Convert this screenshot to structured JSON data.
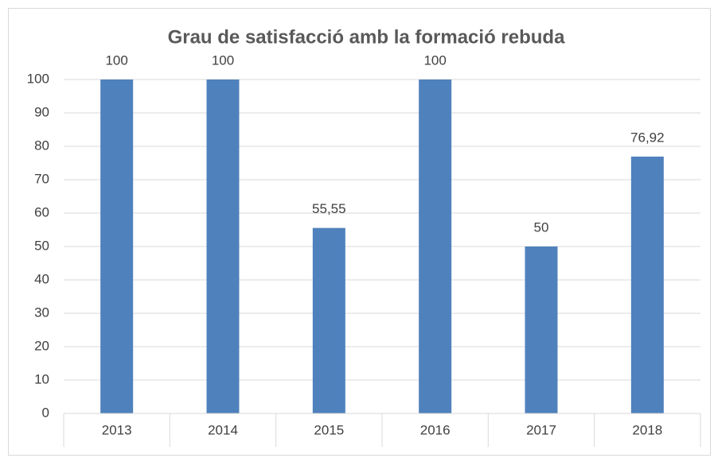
{
  "chart_data": {
    "type": "bar",
    "title": "Grau de satisfacció amb la formació rebuda",
    "categories": [
      "2013",
      "2014",
      "2015",
      "2016",
      "2017",
      "2018"
    ],
    "values": [
      100,
      100,
      55.55,
      100,
      50,
      76.92
    ],
    "value_labels": [
      "100",
      "100",
      "55,55",
      "100",
      "50",
      "76,92"
    ],
    "color": "#4f81bd",
    "ylim": [
      0,
      100
    ],
    "yticks": [
      0,
      10,
      20,
      30,
      40,
      50,
      60,
      70,
      80,
      90,
      100
    ],
    "grid": true
  }
}
